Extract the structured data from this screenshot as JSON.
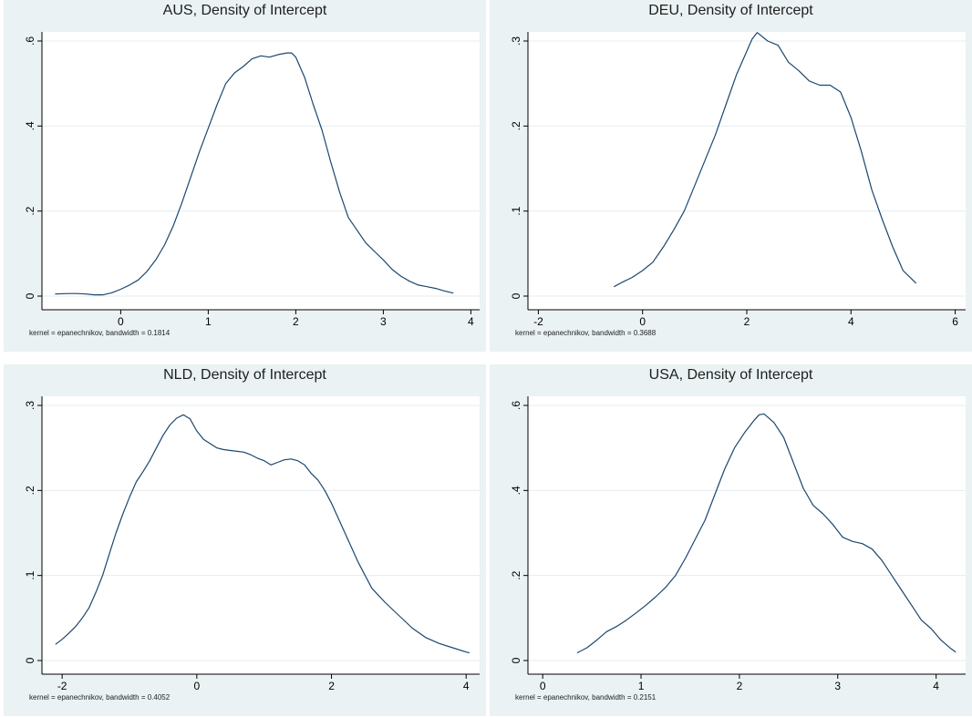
{
  "chart_data": [
    {
      "type": "line",
      "title": "AUS, Density of Intercept",
      "note": "kernel = epanechnikov, bandwidth = 0.1814",
      "xlim": [
        -0.9,
        4.1
      ],
      "ylim": [
        0,
        0.6
      ],
      "xticks": [
        0,
        1,
        2,
        3,
        4
      ],
      "xtick_labels": [
        "0",
        "1",
        "2",
        "3",
        "4"
      ],
      "yticks": [
        0,
        0.2,
        0.4,
        0.6
      ],
      "ytick_labels": [
        "0",
        ".2",
        ".4",
        ".6"
      ],
      "grid": true,
      "line_color": "#1a476f",
      "x": [
        -0.75,
        -0.6,
        -0.5,
        -0.4,
        -0.3,
        -0.2,
        -0.1,
        0.0,
        0.1,
        0.2,
        0.3,
        0.4,
        0.5,
        0.6,
        0.7,
        0.8,
        0.9,
        1.0,
        1.1,
        1.2,
        1.3,
        1.4,
        1.5,
        1.6,
        1.7,
        1.8,
        1.9,
        1.95,
        2.0,
        2.1,
        2.2,
        2.3,
        2.4,
        2.5,
        2.6,
        2.7,
        2.8,
        2.9,
        3.0,
        3.1,
        3.2,
        3.3,
        3.4,
        3.5,
        3.6,
        3.7,
        3.8
      ],
      "y": [
        0.005,
        0.006,
        0.006,
        0.005,
        0.003,
        0.003,
        0.008,
        0.016,
        0.026,
        0.038,
        0.058,
        0.085,
        0.12,
        0.165,
        0.22,
        0.28,
        0.34,
        0.395,
        0.45,
        0.5,
        0.525,
        0.54,
        0.558,
        0.565,
        0.562,
        0.568,
        0.572,
        0.572,
        0.562,
        0.515,
        0.45,
        0.39,
        0.315,
        0.245,
        0.185,
        0.155,
        0.125,
        0.105,
        0.085,
        0.063,
        0.047,
        0.035,
        0.026,
        0.022,
        0.018,
        0.012,
        0.007
      ]
    },
    {
      "type": "line",
      "title": "DEU, Density of Intercept",
      "note": "kernel = epanechnikov, bandwidth = 0.3688",
      "xlim": [
        -2.2,
        6.2
      ],
      "ylim": [
        0,
        0.3
      ],
      "xticks": [
        -2,
        0,
        2,
        4,
        6
      ],
      "xtick_labels": [
        "-2",
        "0",
        "2",
        "4",
        "6"
      ],
      "yticks": [
        0,
        0.1,
        0.2,
        0.3
      ],
      "ytick_labels": [
        "0",
        ".1",
        ".2",
        ".3"
      ],
      "grid": true,
      "line_color": "#1a476f",
      "x": [
        -0.55,
        -0.4,
        -0.2,
        0.0,
        0.2,
        0.4,
        0.6,
        0.8,
        1.0,
        1.2,
        1.4,
        1.6,
        1.8,
        2.0,
        2.1,
        2.2,
        2.4,
        2.6,
        2.8,
        3.0,
        3.2,
        3.4,
        3.6,
        3.8,
        4.0,
        4.2,
        4.4,
        4.6,
        4.8,
        5.0,
        5.2,
        5.25
      ],
      "y": [
        0.011,
        0.016,
        0.022,
        0.03,
        0.04,
        0.058,
        0.078,
        0.1,
        0.13,
        0.16,
        0.19,
        0.225,
        0.26,
        0.288,
        0.302,
        0.31,
        0.3,
        0.295,
        0.275,
        0.265,
        0.253,
        0.248,
        0.248,
        0.24,
        0.21,
        0.17,
        0.125,
        0.09,
        0.058,
        0.03,
        0.018,
        0.015
      ]
    },
    {
      "type": "line",
      "title": "NLD, Density of Intercept",
      "note": "kernel = epanechnikov, bandwidth = 0.4052",
      "xlim": [
        -2.3,
        4.2
      ],
      "ylim": [
        0,
        0.3
      ],
      "xticks": [
        -2,
        0,
        2,
        4
      ],
      "xtick_labels": [
        "-2",
        "0",
        "2",
        "4"
      ],
      "yticks": [
        0,
        0.1,
        0.2,
        0.3
      ],
      "ytick_labels": [
        "0",
        ".1",
        ".2",
        ".3"
      ],
      "grid": true,
      "line_color": "#1a476f",
      "x": [
        -2.1,
        -2.0,
        -1.9,
        -1.8,
        -1.7,
        -1.6,
        -1.5,
        -1.4,
        -1.3,
        -1.2,
        -1.1,
        -1.0,
        -0.9,
        -0.8,
        -0.7,
        -0.6,
        -0.5,
        -0.4,
        -0.3,
        -0.2,
        -0.1,
        0.0,
        0.1,
        0.2,
        0.3,
        0.4,
        0.5,
        0.6,
        0.7,
        0.8,
        0.9,
        1.0,
        1.1,
        1.2,
        1.3,
        1.4,
        1.5,
        1.6,
        1.7,
        1.8,
        1.9,
        2.0,
        2.2,
        2.4,
        2.6,
        2.8,
        3.0,
        3.2,
        3.4,
        3.6,
        3.8,
        4.0,
        4.05
      ],
      "y": [
        0.019,
        0.025,
        0.032,
        0.04,
        0.05,
        0.062,
        0.08,
        0.1,
        0.125,
        0.15,
        0.172,
        0.192,
        0.21,
        0.222,
        0.235,
        0.25,
        0.265,
        0.277,
        0.285,
        0.289,
        0.284,
        0.27,
        0.26,
        0.255,
        0.25,
        0.248,
        0.247,
        0.246,
        0.245,
        0.242,
        0.238,
        0.235,
        0.23,
        0.233,
        0.236,
        0.237,
        0.235,
        0.23,
        0.22,
        0.212,
        0.2,
        0.185,
        0.15,
        0.115,
        0.085,
        0.068,
        0.053,
        0.038,
        0.027,
        0.02,
        0.015,
        0.01,
        0.009
      ]
    },
    {
      "type": "line",
      "title": "USA, Density of Intercept",
      "note": "kernel = epanechnikov, bandwidth = 0.2151",
      "xlim": [
        -0.15,
        4.3
      ],
      "ylim": [
        0,
        0.6
      ],
      "xticks": [
        0,
        1,
        2,
        3,
        4
      ],
      "xtick_labels": [
        "0",
        "1",
        "2",
        "3",
        "4"
      ],
      "yticks": [
        0,
        0.2,
        0.4,
        0.6
      ],
      "ytick_labels": [
        "0",
        ".2",
        ".4",
        ".6"
      ],
      "grid": true,
      "line_color": "#1a476f",
      "x": [
        0.35,
        0.45,
        0.55,
        0.65,
        0.75,
        0.85,
        0.95,
        1.05,
        1.15,
        1.25,
        1.35,
        1.45,
        1.55,
        1.65,
        1.75,
        1.85,
        1.95,
        2.05,
        2.15,
        2.2,
        2.25,
        2.35,
        2.45,
        2.55,
        2.65,
        2.75,
        2.85,
        2.95,
        3.05,
        3.15,
        3.25,
        3.35,
        3.45,
        3.55,
        3.65,
        3.75,
        3.85,
        3.95,
        4.05,
        4.15,
        4.2
      ],
      "y": [
        0.018,
        0.03,
        0.048,
        0.068,
        0.08,
        0.095,
        0.112,
        0.13,
        0.15,
        0.172,
        0.2,
        0.24,
        0.285,
        0.33,
        0.39,
        0.45,
        0.5,
        0.535,
        0.565,
        0.578,
        0.58,
        0.56,
        0.525,
        0.465,
        0.405,
        0.365,
        0.345,
        0.32,
        0.29,
        0.28,
        0.275,
        0.262,
        0.235,
        0.2,
        0.165,
        0.13,
        0.095,
        0.075,
        0.048,
        0.028,
        0.02
      ]
    }
  ]
}
